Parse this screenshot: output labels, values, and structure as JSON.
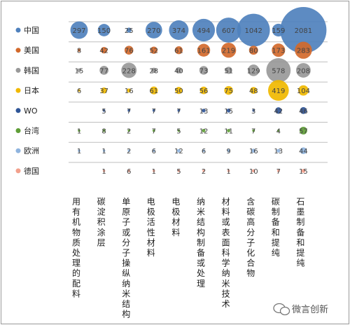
{
  "chart_data": {
    "type": "bubble",
    "title": "",
    "categories": [
      "用有机物质处理的配料",
      "碳淀积涂层",
      "单原子或分子操纵纳米结构",
      "电极活性材料",
      "电极材料",
      "纳米结构制备或处理",
      "材料或表面科学纳米技术",
      "含碳高分子化合物",
      "碳制备和提纯",
      "石墨制备和提纯"
    ],
    "series": [
      {
        "name": "中国",
        "color": "#4f81bd",
        "values": [
          297,
          150,
          25,
          270,
          374,
          494,
          607,
          1042,
          159,
          2081
        ]
      },
      {
        "name": "美国",
        "color": "#d2692b",
        "values": [
          8,
          42,
          76,
          52,
          61,
          161,
          219,
          80,
          173,
          283
        ]
      },
      {
        "name": "韩国",
        "color": "#999999",
        "values": [
          15,
          77,
          228,
          28,
          40,
          73,
          51,
          129,
          578,
          208
        ]
      },
      {
        "name": "日本",
        "color": "#f0b800",
        "values": [
          6,
          37,
          16,
          61,
          50,
          56,
          75,
          48,
          419,
          104
        ]
      },
      {
        "name": "WO",
        "color": "#2f5597",
        "values": [
          null,
          5,
          7,
          7,
          7,
          13,
          15,
          3,
          42,
          46
        ]
      },
      {
        "name": "台湾",
        "color": "#5f9e37",
        "values": [
          1,
          8,
          2,
          7,
          5,
          12,
          11,
          7,
          4,
          57
        ]
      },
      {
        "name": "欧洲",
        "color": "#8fb4de",
        "values": [
          1,
          1,
          2,
          6,
          12,
          6,
          9,
          16,
          13,
          44
        ]
      },
      {
        "name": "德国",
        "color": "#f2a08c",
        "values": [
          null,
          1,
          6,
          1,
          5,
          2,
          1,
          10,
          7,
          15
        ]
      }
    ],
    "legend_position": "left"
  },
  "watermark": "微言创新"
}
